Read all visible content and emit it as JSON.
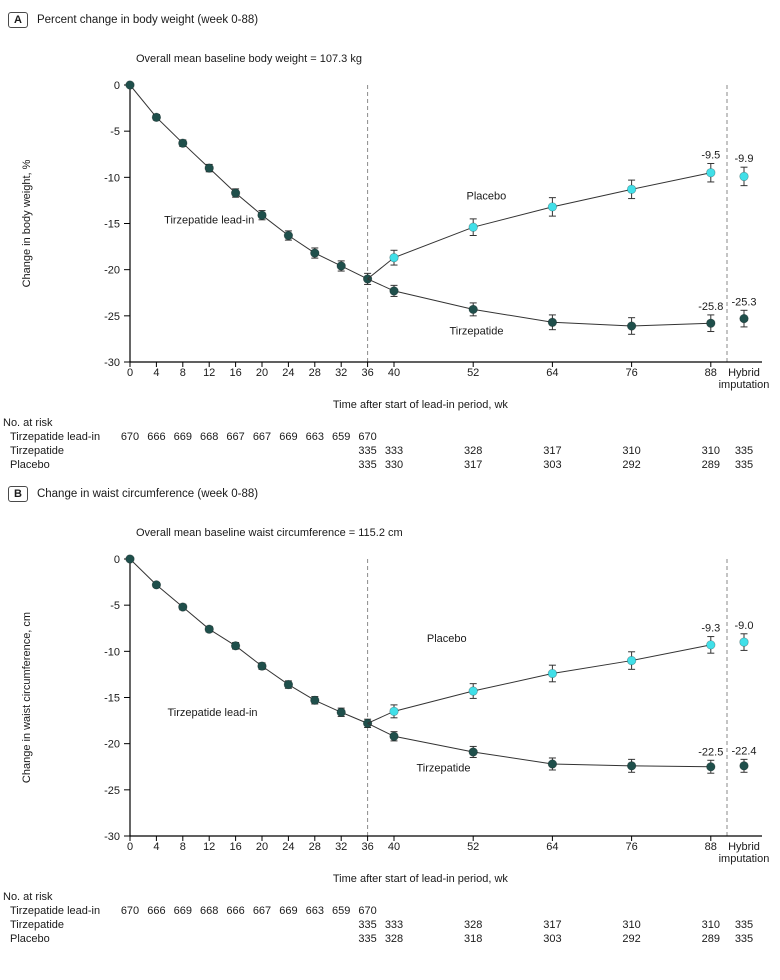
{
  "colors": {
    "dark_series": "#1f4f4b",
    "cyan_series": "#41dfe8",
    "line": "#333333",
    "error_bar": "#333333",
    "axis": "#000000",
    "dashed_line": "#8a8a8a",
    "text": "#1a1a1a"
  },
  "chart_data": [
    {
      "type": "line",
      "panel_label": "A",
      "title": "Percent change in body weight (week 0-88)",
      "annotation": "Overall mean baseline body weight = 107.3 kg",
      "ylabel": "Change in body weight, %",
      "xlabel": "Time after start of lead-in period, wk",
      "ylim": [
        -30,
        0
      ],
      "yticks": [
        0,
        -5,
        -10,
        -15,
        -20,
        -25,
        -30
      ],
      "xticks": [
        0,
        4,
        8,
        12,
        16,
        20,
        24,
        28,
        32,
        36,
        40,
        52,
        64,
        76,
        88
      ],
      "hybrid_axis_label": [
        "Hybrid",
        "imputation"
      ],
      "dashed_lines_weeks": [
        36
      ],
      "series": [
        {
          "name": "Tirzepatide lead-in",
          "color": "dark",
          "x": [
            0,
            4,
            8,
            12,
            16,
            20,
            24,
            28,
            32,
            36
          ],
          "y": [
            0,
            -3.5,
            -6.3,
            -9.0,
            -11.7,
            -14.1,
            -16.3,
            -18.2,
            -19.6,
            -21.0
          ],
          "err": [
            0,
            0.3,
            0.35,
            0.4,
            0.45,
            0.5,
            0.5,
            0.55,
            0.55,
            0.6
          ],
          "label_pos": [
            12,
            -15.0
          ]
        },
        {
          "name": "Placebo",
          "color": "cyan",
          "skip_first": true,
          "x": [
            36,
            40,
            52,
            64,
            76,
            88
          ],
          "y": [
            -21.0,
            -18.7,
            -15.4,
            -13.2,
            -11.3,
            -9.5
          ],
          "err": [
            0,
            0.8,
            0.9,
            1.0,
            1.0,
            1.0
          ],
          "label_pos": [
            54,
            -12.4
          ],
          "end_label": "-9.5",
          "hybrid": {
            "y": -9.9,
            "err": 1.0,
            "label": "-9.9"
          }
        },
        {
          "name": "Tirzepatide",
          "color": "dark",
          "skip_first": true,
          "x": [
            36,
            40,
            52,
            64,
            76,
            88
          ],
          "y": [
            -21.0,
            -22.3,
            -24.3,
            -25.7,
            -26.1,
            -25.8
          ],
          "err": [
            0,
            0.6,
            0.7,
            0.8,
            0.9,
            0.9
          ],
          "label_pos": [
            52.5,
            -27.0
          ],
          "end_label": "-25.8",
          "hybrid": {
            "y": -25.3,
            "err": 0.9,
            "label": "-25.3"
          }
        }
      ],
      "risk_title": "No. at risk",
      "no_at_risk": [
        {
          "label": "Tirzepatide lead-in",
          "weeks": [
            0,
            4,
            8,
            12,
            16,
            20,
            24,
            28,
            32,
            36
          ],
          "values": [
            "670",
            "666",
            "669",
            "668",
            "667",
            "667",
            "669",
            "663",
            "659",
            "670"
          ]
        },
        {
          "label": "Tirzepatide",
          "weeks": [
            36,
            40,
            52,
            64,
            76,
            88,
            "H"
          ],
          "values": [
            "335",
            "333",
            "328",
            "317",
            "310",
            "310",
            "335"
          ]
        },
        {
          "label": "Placebo",
          "weeks": [
            36,
            40,
            52,
            64,
            76,
            88,
            "H"
          ],
          "values": [
            "335",
            "330",
            "317",
            "303",
            "292",
            "289",
            "335"
          ]
        }
      ]
    },
    {
      "type": "line",
      "panel_label": "B",
      "title": "Change in waist circumference (week 0-88)",
      "annotation": "Overall mean baseline waist circumference = 115.2 cm",
      "ylabel": "Change in waist circumference, cm",
      "xlabel": "Time after start of lead-in period, wk",
      "ylim": [
        -30,
        0
      ],
      "yticks": [
        0,
        -5,
        -10,
        -15,
        -20,
        -25,
        -30
      ],
      "xticks": [
        0,
        4,
        8,
        12,
        16,
        20,
        24,
        28,
        32,
        36,
        40,
        52,
        64,
        76,
        88
      ],
      "hybrid_axis_label": [
        "Hybrid",
        "imputation"
      ],
      "dashed_lines_weeks": [
        36
      ],
      "series": [
        {
          "name": "Tirzepatide lead-in",
          "color": "dark",
          "x": [
            0,
            4,
            8,
            12,
            16,
            20,
            24,
            28,
            32,
            36
          ],
          "y": [
            0,
            -2.8,
            -5.2,
            -7.6,
            -9.4,
            -11.6,
            -13.6,
            -15.3,
            -16.6,
            -17.8
          ],
          "err": [
            0,
            0.25,
            0.3,
            0.3,
            0.35,
            0.35,
            0.4,
            0.4,
            0.45,
            0.45
          ],
          "label_pos": [
            12.5,
            -17.0
          ]
        },
        {
          "name": "Placebo",
          "color": "cyan",
          "skip_first": true,
          "x": [
            36,
            40,
            52,
            64,
            76,
            88
          ],
          "y": [
            -17.8,
            -16.5,
            -14.3,
            -12.4,
            -11.0,
            -9.3
          ],
          "err": [
            0,
            0.7,
            0.8,
            0.9,
            0.95,
            0.9
          ],
          "label_pos": [
            48,
            -9.0
          ],
          "end_label": "-9.3",
          "hybrid": {
            "y": -9.0,
            "err": 0.9,
            "label": "-9.0"
          }
        },
        {
          "name": "Tirzepatide",
          "color": "dark",
          "skip_first": true,
          "x": [
            36,
            40,
            52,
            64,
            76,
            88
          ],
          "y": [
            -17.8,
            -19.2,
            -20.9,
            -22.2,
            -22.4,
            -22.5
          ],
          "err": [
            0,
            0.5,
            0.6,
            0.65,
            0.7,
            0.7
          ],
          "label_pos": [
            47.5,
            -23.0
          ],
          "end_label": "-22.5",
          "hybrid": {
            "y": -22.4,
            "err": 0.7,
            "label": "-22.4"
          }
        }
      ],
      "risk_title": "No. at risk",
      "no_at_risk": [
        {
          "label": "Tirzepatide lead-in",
          "weeks": [
            0,
            4,
            8,
            12,
            16,
            20,
            24,
            28,
            32,
            36
          ],
          "values": [
            "670",
            "666",
            "669",
            "668",
            "666",
            "667",
            "669",
            "663",
            "659",
            "670"
          ]
        },
        {
          "label": "Tirzepatide",
          "weeks": [
            36,
            40,
            52,
            64,
            76,
            88,
            "H"
          ],
          "values": [
            "335",
            "333",
            "328",
            "317",
            "310",
            "310",
            "335"
          ]
        },
        {
          "label": "Placebo",
          "weeks": [
            36,
            40,
            52,
            64,
            76,
            88,
            "H"
          ],
          "values": [
            "335",
            "328",
            "318",
            "303",
            "292",
            "289",
            "335"
          ]
        }
      ]
    }
  ]
}
